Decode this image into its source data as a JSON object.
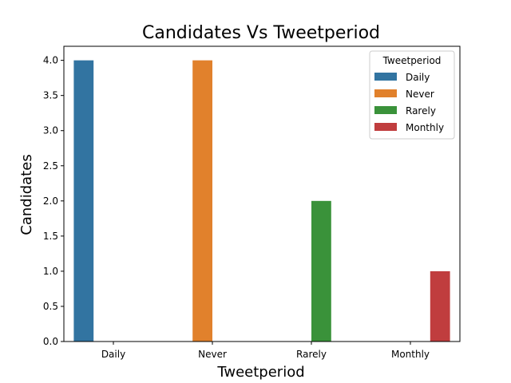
{
  "chart_data": {
    "type": "bar",
    "title": "Candidates Vs Tweetperiod",
    "xlabel": "Tweetperiod",
    "ylabel": "Candidates",
    "categories": [
      "Daily",
      "Never",
      "Rarely",
      "Monthly"
    ],
    "series": [
      {
        "name": "Daily",
        "color": "#3274a1",
        "values": [
          4,
          0,
          0,
          0
        ]
      },
      {
        "name": "Never",
        "color": "#e1812c",
        "values": [
          0,
          4,
          0,
          0
        ]
      },
      {
        "name": "Rarely",
        "color": "#3a923a",
        "values": [
          0,
          0,
          2,
          0
        ]
      },
      {
        "name": "Monthly",
        "color": "#c03d3e",
        "values": [
          0,
          0,
          0,
          1
        ]
      }
    ],
    "ylim": [
      0,
      4.2
    ],
    "yticks": [
      "0.0",
      "0.5",
      "1.0",
      "1.5",
      "2.0",
      "2.5",
      "3.0",
      "3.5",
      "4.0"
    ],
    "grid": false,
    "legend": {
      "title": "Tweetperiod",
      "placement": "top-right"
    }
  }
}
